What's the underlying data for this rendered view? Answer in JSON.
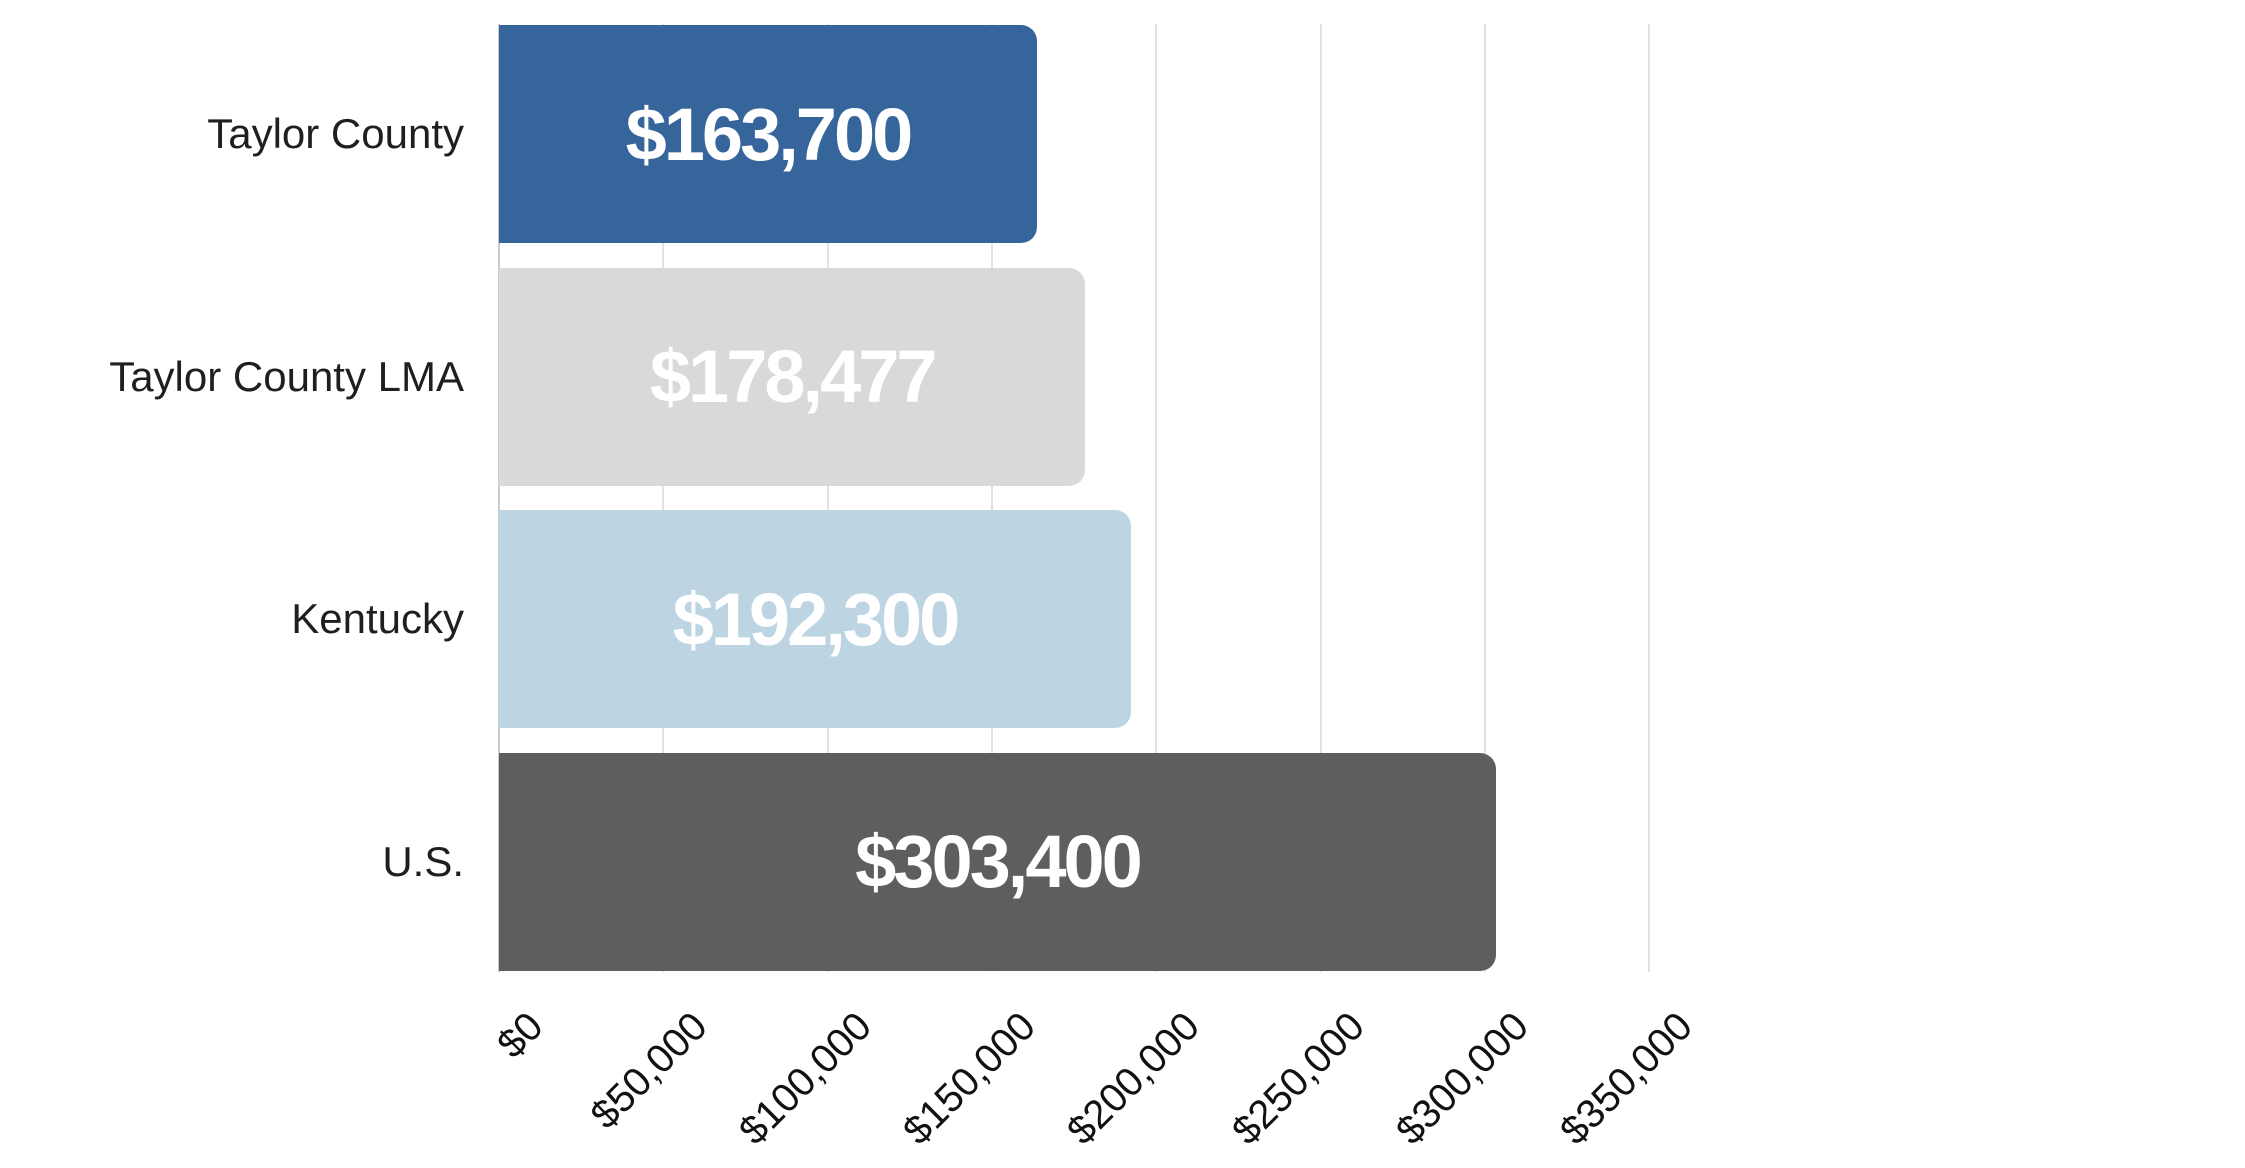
{
  "chart_data": {
    "type": "bar",
    "orientation": "horizontal",
    "title": "",
    "categories": [
      "Taylor County",
      "Taylor County LMA",
      "Kentucky",
      "U.S."
    ],
    "values": [
      163700,
      178477,
      192300,
      303400
    ],
    "value_labels": [
      "$163,700",
      "$178,477",
      "$192,300",
      "$303,400"
    ],
    "bar_colors": [
      "#36659b",
      "#d9d9d9",
      "#bdd5e2",
      "#5e5e5e"
    ],
    "value_label_color": "#ffffff",
    "x_axis": {
      "tick_labels": [
        "$0",
        "$50,000",
        "$100,000",
        "$150,000",
        "$200,000",
        "$250,000",
        "$300,000",
        "$350,000"
      ],
      "tick_values": [
        0,
        50000,
        100000,
        150000,
        200000,
        250000,
        300000,
        350000
      ],
      "min": 0,
      "max": 350000,
      "tick_label_rotation_deg": -45
    },
    "grid": "vertical-on",
    "gridline_color": "#e2e2e2",
    "background_color": "#ffffff",
    "legend": "none"
  }
}
